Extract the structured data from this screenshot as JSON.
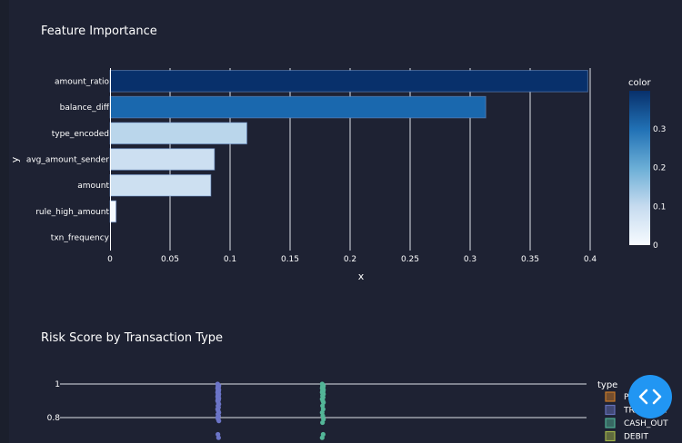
{
  "chart_data": [
    {
      "type": "bar",
      "orientation": "horizontal",
      "title": "Feature Importance",
      "xlabel": "x",
      "ylabel": "y",
      "categories": [
        "amount_ratio",
        "balance_diff",
        "type_encoded",
        "avg_amount_sender",
        "amount",
        "rule_high_amount",
        "txn_frequency"
      ],
      "values": [
        0.398,
        0.313,
        0.114,
        0.087,
        0.084,
        0.005,
        0.0
      ],
      "xlim": [
        0,
        0.4
      ],
      "xticks": [
        0,
        0.05,
        0.1,
        0.15,
        0.2,
        0.25,
        0.3,
        0.35,
        0.4
      ],
      "xtick_labels": [
        "0",
        "0.05",
        "0.1",
        "0.15",
        "0.2",
        "0.25",
        "0.3",
        "0.35",
        "0.4"
      ],
      "colorbar": {
        "title": "color",
        "range": [
          0,
          0.398
        ],
        "ticks": [
          0,
          0.1,
          0.2,
          0.3
        ],
        "tick_labels": [
          "0",
          "0.1",
          "0.2",
          "0.3"
        ]
      }
    },
    {
      "type": "strip",
      "title": "Risk Score by Transaction Type",
      "yticks": [
        1,
        0.8
      ],
      "ytick_labels": [
        "1",
        "0.8"
      ],
      "ylim_visible": [
        0.66,
        1.02
      ],
      "legend_title": "type",
      "legend": [
        {
          "name": "PAYMENT",
          "color": "#c97a2a"
        },
        {
          "name": "TRANSFER",
          "color": "#6470b8"
        },
        {
          "name": "CASH_OUT",
          "color": "#4fae94"
        },
        {
          "name": "DEBIT",
          "color": "#9fb24a"
        }
      ],
      "series": [
        {
          "name": "TRANSFER",
          "color": "#6b74c7",
          "values": [
            1.0,
            0.995,
            0.99,
            0.985,
            0.98,
            0.975,
            0.97,
            0.965,
            0.96,
            0.955,
            0.95,
            0.945,
            0.94,
            0.935,
            0.93,
            0.925,
            0.92,
            0.915,
            0.91,
            0.905,
            0.9,
            0.89,
            0.88,
            0.87,
            0.86,
            0.85,
            0.84,
            0.83,
            0.82,
            0.81,
            0.8,
            0.79,
            0.78,
            0.7,
            0.68
          ]
        },
        {
          "name": "CASH_OUT",
          "color": "#53b597",
          "values": [
            1.0,
            0.995,
            0.99,
            0.985,
            0.98,
            0.975,
            0.97,
            0.965,
            0.96,
            0.955,
            0.95,
            0.945,
            0.94,
            0.93,
            0.92,
            0.91,
            0.9,
            0.89,
            0.87,
            0.85,
            0.83,
            0.81,
            0.79,
            0.77,
            0.7,
            0.68
          ]
        }
      ]
    }
  ]
}
